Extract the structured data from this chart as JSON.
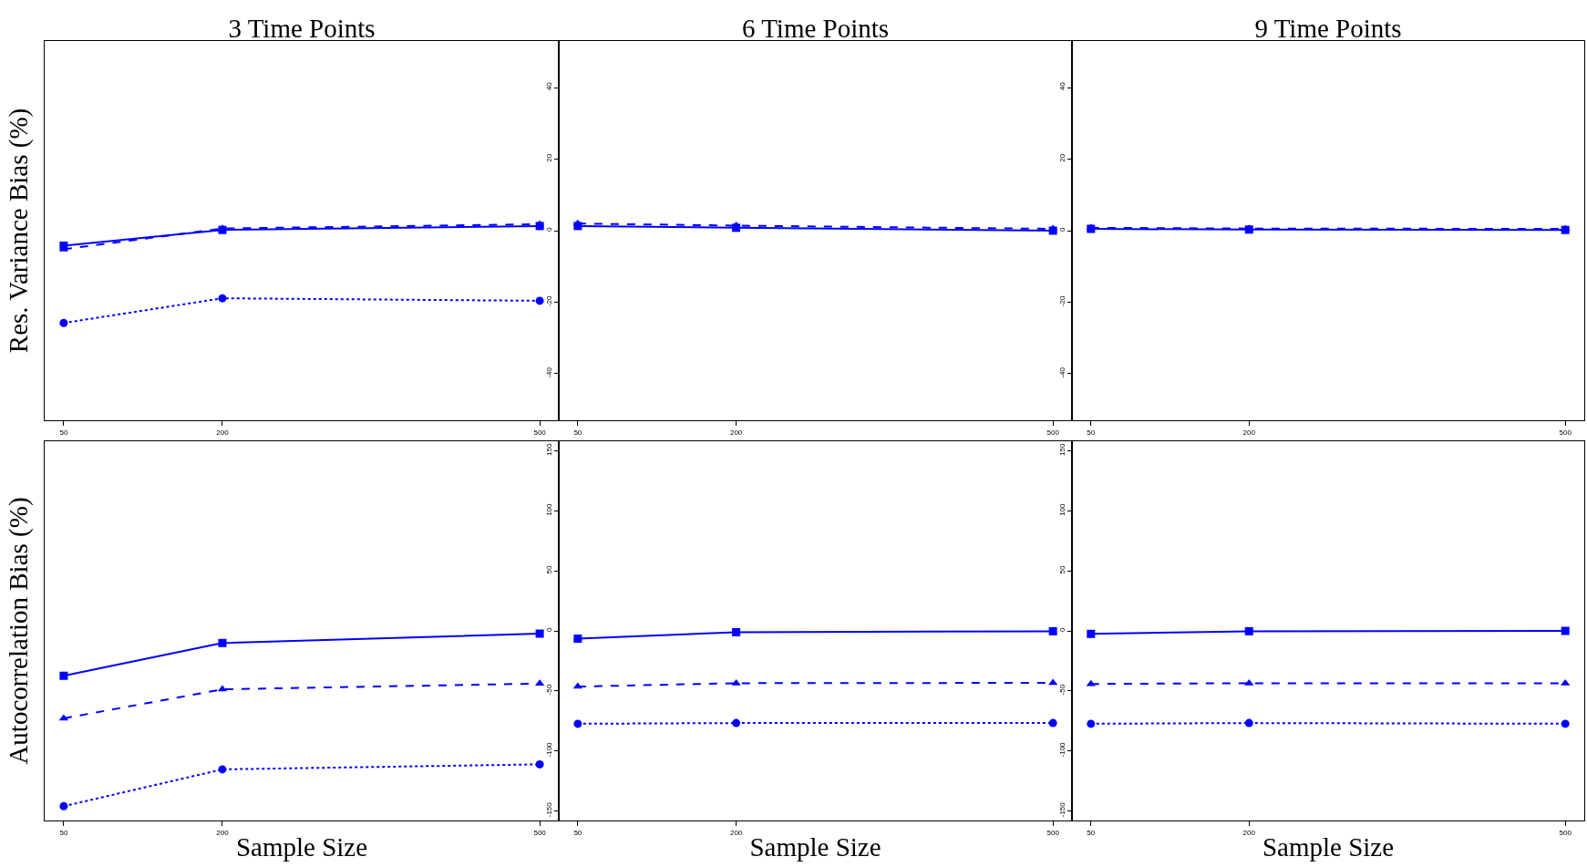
{
  "chart_data": [
    {
      "type": "line",
      "title": "3 Time Points",
      "ylabel": "Res. Variance Bias (%)",
      "x": [
        50,
        200,
        500
      ],
      "xlim": [
        32,
        518
      ],
      "xticks": [
        50,
        200,
        500
      ],
      "ylim": [
        -53,
        53
      ],
      "yticks": [
        -40,
        -20,
        0,
        20,
        40
      ],
      "tick_labels": "x",
      "series": [
        {
          "color": "#0000ff",
          "marker": "square",
          "line_style": "solid",
          "values": [
            -4.2,
            0.2,
            1.3
          ]
        },
        {
          "color": "#0000ff",
          "marker": "triangle",
          "line_style": "dashed",
          "values": [
            -5.2,
            0.6,
            1.8
          ]
        },
        {
          "color": "#0000ff",
          "marker": "circle",
          "line_style": "dotted",
          "values": [
            -25.8,
            -18.9,
            -19.6
          ]
        }
      ]
    },
    {
      "type": "line",
      "title": "6 Time Points",
      "x": [
        50,
        200,
        500
      ],
      "xlim": [
        32,
        518
      ],
      "xticks": [
        50,
        200,
        500
      ],
      "ylim": [
        -53,
        53
      ],
      "yticks": [
        -40,
        -20,
        0,
        20,
        40
      ],
      "series": [
        {
          "color": "#0000ff",
          "marker": "square",
          "line_style": "solid",
          "values": [
            1.3,
            0.8,
            0
          ]
        },
        {
          "color": "#0000ff",
          "marker": "triangle",
          "line_style": "dashed",
          "values": [
            2.0,
            1.4,
            0.5
          ]
        },
        {
          "color": "#0000ff",
          "marker": "circle",
          "line_style": "dotted",
          "values": [
            null,
            null,
            null
          ]
        }
      ]
    },
    {
      "type": "line",
      "title": "9 Time Points",
      "x": [
        50,
        200,
        500
      ],
      "xlim": [
        32,
        518
      ],
      "xticks": [
        50,
        200,
        500
      ],
      "ylim": [
        -53,
        53
      ],
      "yticks": [
        -40,
        -20,
        0,
        20,
        40
      ],
      "series": [
        {
          "color": "#0000ff",
          "marker": "square",
          "line_style": "solid",
          "values": [
            0.5,
            0.3,
            0.2
          ]
        },
        {
          "color": "#0000ff",
          "marker": "triangle",
          "line_style": "dashed",
          "values": [
            0.8,
            0.6,
            0.5
          ]
        },
        {
          "color": "#0000ff",
          "marker": "circle",
          "line_style": "dotted",
          "values": [
            null,
            null,
            null
          ]
        }
      ]
    },
    {
      "type": "line",
      "ylabel": "Autocorrelation Bias (%)",
      "xlabel": "Sample Size",
      "x": [
        50,
        200,
        500
      ],
      "xlim": [
        32,
        518
      ],
      "xticks": [
        50,
        200,
        500
      ],
      "ylim": [
        -158,
        158
      ],
      "yticks": [
        -150,
        -100,
        -50,
        0,
        50,
        100,
        150
      ],
      "tick_labels": "x",
      "series": [
        {
          "color": "#0000ff",
          "marker": "square",
          "line_style": "solid",
          "values": [
            -37.4,
            -10.1,
            -2.3
          ]
        },
        {
          "color": "#0000ff",
          "marker": "triangle",
          "line_style": "dashed",
          "values": [
            -72.9,
            -48.7,
            -43.9
          ]
        },
        {
          "color": "#0000ff",
          "marker": "circle",
          "line_style": "dotted",
          "values": [
            -146.1,
            -115.4,
            -111.2
          ]
        }
      ]
    },
    {
      "type": "line",
      "xlabel": "Sample Size",
      "x": [
        50,
        200,
        500
      ],
      "xlim": [
        32,
        518
      ],
      "xticks": [
        50,
        200,
        500
      ],
      "ylim": [
        -158,
        158
      ],
      "yticks": [
        -150,
        -100,
        -50,
        0,
        50,
        100,
        150
      ],
      "series": [
        {
          "color": "#0000ff",
          "marker": "square",
          "line_style": "solid",
          "values": [
            -6.5,
            -1.1,
            -0.3
          ]
        },
        {
          "color": "#0000ff",
          "marker": "triangle",
          "line_style": "dashed",
          "values": [
            -46.4,
            -43.6,
            -43.3
          ]
        },
        {
          "color": "#0000ff",
          "marker": "circle",
          "line_style": "dotted",
          "values": [
            -77.4,
            -76.8,
            -76.8
          ]
        }
      ]
    },
    {
      "type": "line",
      "xlabel": "Sample Size",
      "x": [
        50,
        200,
        500
      ],
      "xlim": [
        32,
        518
      ],
      "xticks": [
        50,
        200,
        500
      ],
      "ylim": [
        -158,
        158
      ],
      "yticks": [
        -150,
        -100,
        -50,
        0,
        50,
        100,
        150
      ],
      "series": [
        {
          "color": "#0000ff",
          "marker": "square",
          "line_style": "solid",
          "values": [
            -2.5,
            -0.3,
            0
          ]
        },
        {
          "color": "#0000ff",
          "marker": "triangle",
          "line_style": "dashed",
          "values": [
            -44.2,
            -43.6,
            -43.6
          ]
        },
        {
          "color": "#0000ff",
          "marker": "circle",
          "line_style": "dotted",
          "values": [
            -77.4,
            -76.8,
            -77.4
          ]
        }
      ]
    }
  ]
}
